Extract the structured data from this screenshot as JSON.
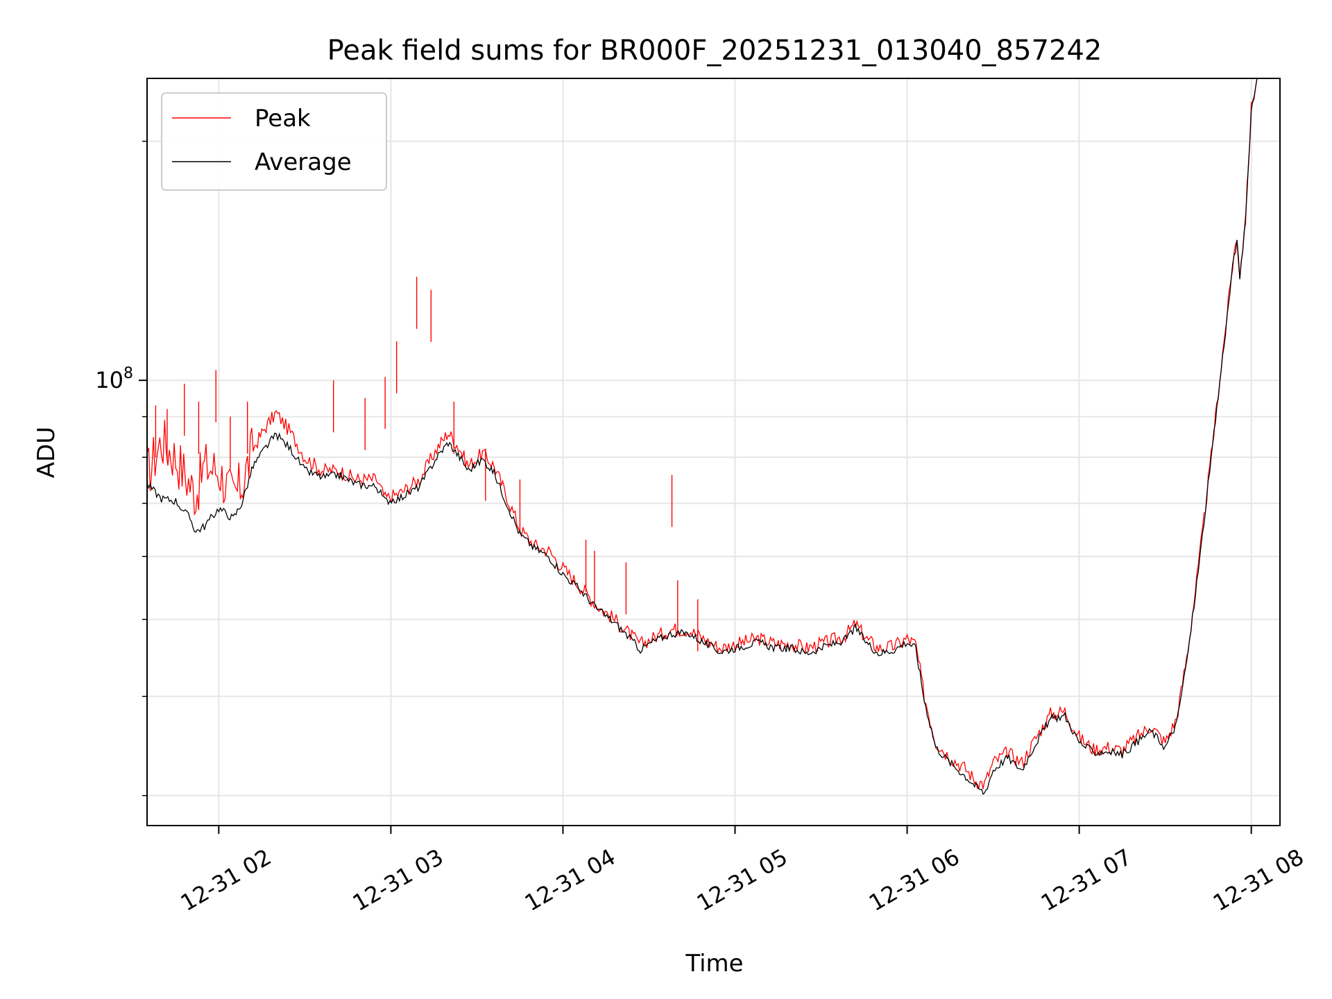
{
  "chart_data": {
    "type": "line",
    "title": "Peak field sums for BR000F_20251231_013040_857242",
    "xlabel": "Time",
    "ylabel": "ADU",
    "y_scale": "log",
    "ylim": [
      27500000,
      240000000
    ],
    "xlim": [
      "2025-12-31T01:35:00",
      "2025-12-31T08:10:00"
    ],
    "grid": true,
    "legend_placement": "top-left",
    "x_ticks": [
      {
        "t": "2025-12-31T02:00:00",
        "label": "12-31 02"
      },
      {
        "t": "2025-12-31T03:00:00",
        "label": "12-31 03"
      },
      {
        "t": "2025-12-31T04:00:00",
        "label": "12-31 04"
      },
      {
        "t": "2025-12-31T05:00:00",
        "label": "12-31 05"
      },
      {
        "t": "2025-12-31T06:00:00",
        "label": "12-31 06"
      },
      {
        "t": "2025-12-31T07:00:00",
        "label": "12-31 07"
      },
      {
        "t": "2025-12-31T08:00:00",
        "label": "12-31 08"
      }
    ],
    "y_major_ticks": [
      {
        "value": 100000000,
        "base": "10",
        "exp": "8"
      }
    ],
    "y_minor_ticks": [
      30000000,
      40000000,
      50000000,
      60000000,
      70000000,
      80000000,
      90000000,
      200000000
    ],
    "series": [
      {
        "name": "Peak",
        "color": "#ff0000",
        "points": [
          [
            "2025-12-31T01:35:00",
            76000000
          ],
          [
            "2025-12-31T01:40:00",
            84000000
          ],
          [
            "2025-12-31T01:45:00",
            80000000
          ],
          [
            "2025-12-31T01:50:00",
            74000000
          ],
          [
            "2025-12-31T01:52:00",
            72000000
          ],
          [
            "2025-12-31T01:55:00",
            78000000
          ],
          [
            "2025-12-31T02:00:00",
            77000000
          ],
          [
            "2025-12-31T02:05:00",
            71000000
          ],
          [
            "2025-12-31T02:08:00",
            74000000
          ],
          [
            "2025-12-31T02:12:00",
            82000000
          ],
          [
            "2025-12-31T02:16:00",
            87000000
          ],
          [
            "2025-12-31T02:20:00",
            91000000
          ],
          [
            "2025-12-31T02:25:00",
            86000000
          ],
          [
            "2025-12-31T02:30:00",
            80000000
          ],
          [
            "2025-12-31T02:36:00",
            77000000
          ],
          [
            "2025-12-31T02:42:00",
            77000000
          ],
          [
            "2025-12-31T02:48:00",
            75000000
          ],
          [
            "2025-12-31T02:55:00",
            75000000
          ],
          [
            "2025-12-31T02:58:00",
            71000000
          ],
          [
            "2025-12-31T03:03:00",
            72000000
          ],
          [
            "2025-12-31T03:10:00",
            75000000
          ],
          [
            "2025-12-31T03:16:00",
            82000000
          ],
          [
            "2025-12-31T03:20:00",
            86000000
          ],
          [
            "2025-12-31T03:24:00",
            82000000
          ],
          [
            "2025-12-31T03:27:00",
            78000000
          ],
          [
            "2025-12-31T03:32:00",
            81000000
          ],
          [
            "2025-12-31T03:36:00",
            78000000
          ],
          [
            "2025-12-31T03:40:00",
            72000000
          ],
          [
            "2025-12-31T03:45:00",
            65000000
          ],
          [
            "2025-12-31T03:50:00",
            62000000
          ],
          [
            "2025-12-31T03:55:00",
            61000000
          ],
          [
            "2025-12-31T04:00:00",
            58000000
          ],
          [
            "2025-12-31T04:06:00",
            55000000
          ],
          [
            "2025-12-31T04:12:00",
            52000000
          ],
          [
            "2025-12-31T04:18:00",
            50000000
          ],
          [
            "2025-12-31T04:23:00",
            48000000
          ],
          [
            "2025-12-31T04:27:00",
            46500000
          ],
          [
            "2025-12-31T04:32:00",
            47500000
          ],
          [
            "2025-12-31T04:38:00",
            48600000
          ],
          [
            "2025-12-31T04:44:00",
            48500000
          ],
          [
            "2025-12-31T04:50:00",
            47000000
          ],
          [
            "2025-12-31T04:55:00",
            46000000
          ],
          [
            "2025-12-31T05:00:00",
            46500000
          ],
          [
            "2025-12-31T05:08:00",
            47300000
          ],
          [
            "2025-12-31T05:14:00",
            46600000
          ],
          [
            "2025-12-31T05:20:00",
            46500000
          ],
          [
            "2025-12-31T05:25:00",
            46000000
          ],
          [
            "2025-12-31T05:32:00",
            46800000
          ],
          [
            "2025-12-31T05:38:00",
            47600000
          ],
          [
            "2025-12-31T05:42:00",
            49300000
          ],
          [
            "2025-12-31T05:46:00",
            47200000
          ],
          [
            "2025-12-31T05:50:00",
            46000000
          ],
          [
            "2025-12-31T05:55:00",
            46200000
          ],
          [
            "2025-12-31T06:00:00",
            47300000
          ],
          [
            "2025-12-31T06:03:00",
            46500000
          ],
          [
            "2025-12-31T06:06:00",
            40000000
          ],
          [
            "2025-12-31T06:10:00",
            35000000
          ],
          [
            "2025-12-31T06:15:00",
            33500000
          ],
          [
            "2025-12-31T06:20:00",
            32500000
          ],
          [
            "2025-12-31T06:24:00",
            31300000
          ],
          [
            "2025-12-31T06:27:00",
            31000000
          ],
          [
            "2025-12-31T06:30:00",
            33000000
          ],
          [
            "2025-12-31T06:35:00",
            34000000
          ],
          [
            "2025-12-31T06:40:00",
            33000000
          ],
          [
            "2025-12-31T06:45:00",
            35500000
          ],
          [
            "2025-12-31T06:50:00",
            38000000
          ],
          [
            "2025-12-31T06:55:00",
            38300000
          ],
          [
            "2025-12-31T07:00:00",
            35500000
          ],
          [
            "2025-12-31T07:05:00",
            34300000
          ],
          [
            "2025-12-31T07:10:00",
            34500000
          ],
          [
            "2025-12-31T07:15:00",
            34200000
          ],
          [
            "2025-12-31T07:20:00",
            35500000
          ],
          [
            "2025-12-31T07:25:00",
            36700000
          ],
          [
            "2025-12-31T07:30:00",
            35000000
          ],
          [
            "2025-12-31T07:34:00",
            37500000
          ],
          [
            "2025-12-31T07:38:00",
            46000000
          ],
          [
            "2025-12-31T07:42:00",
            60000000
          ],
          [
            "2025-12-31T07:46:00",
            80000000
          ],
          [
            "2025-12-31T07:50:00",
            108000000
          ],
          [
            "2025-12-31T07:54:00",
            145000000
          ],
          [
            "2025-12-31T07:55:00",
            150000000
          ],
          [
            "2025-12-31T07:56:00",
            136000000
          ],
          [
            "2025-12-31T07:58:00",
            160000000
          ],
          [
            "2025-12-31T08:00:00",
            220000000
          ],
          [
            "2025-12-31T08:02:00",
            240000000
          ]
        ],
        "spikes": [
          [
            "2025-12-31T01:35:00",
            100000000
          ],
          [
            "2025-12-31T01:38:00",
            93000000
          ],
          [
            "2025-12-31T01:42:00",
            92000000
          ],
          [
            "2025-12-31T01:48:00",
            99000000
          ],
          [
            "2025-12-31T01:53:00",
            94000000
          ],
          [
            "2025-12-31T01:59:00",
            103000000
          ],
          [
            "2025-12-31T02:04:00",
            90000000
          ],
          [
            "2025-12-31T02:10:00",
            94000000
          ],
          [
            "2025-12-31T02:40:00",
            100000000
          ],
          [
            "2025-12-31T02:51:00",
            95000000
          ],
          [
            "2025-12-31T02:58:00",
            101000000
          ],
          [
            "2025-12-31T03:02:00",
            112000000
          ],
          [
            "2025-12-31T03:09:00",
            135000000
          ],
          [
            "2025-12-31T03:14:00",
            130000000
          ],
          [
            "2025-12-31T03:22:00",
            94000000
          ],
          [
            "2025-12-31T03:33:00",
            82000000
          ],
          [
            "2025-12-31T03:45:00",
            75000000
          ],
          [
            "2025-12-31T04:08:00",
            63000000
          ],
          [
            "2025-12-31T04:11:00",
            61000000
          ],
          [
            "2025-12-31T04:22:00",
            59000000
          ],
          [
            "2025-12-31T04:38:00",
            76000000
          ],
          [
            "2025-12-31T04:40:00",
            56000000
          ],
          [
            "2025-12-31T04:47:00",
            53000000
          ]
        ]
      },
      {
        "name": "Average",
        "color": "#000000",
        "points": [
          [
            "2025-12-31T01:35:00",
            74000000
          ],
          [
            "2025-12-31T01:40:00",
            71000000
          ],
          [
            "2025-12-31T01:45:00",
            70500000
          ],
          [
            "2025-12-31T01:50:00",
            67000000
          ],
          [
            "2025-12-31T01:52:00",
            64500000
          ],
          [
            "2025-12-31T01:55:00",
            65500000
          ],
          [
            "2025-12-31T02:00:00",
            69000000
          ],
          [
            "2025-12-31T02:05:00",
            67000000
          ],
          [
            "2025-12-31T02:08:00",
            70000000
          ],
          [
            "2025-12-31T02:12:00",
            78000000
          ],
          [
            "2025-12-31T02:16:00",
            82000000
          ],
          [
            "2025-12-31T02:20:00",
            85500000
          ],
          [
            "2025-12-31T02:25:00",
            82000000
          ],
          [
            "2025-12-31T02:30:00",
            77000000
          ],
          [
            "2025-12-31T02:36:00",
            75500000
          ],
          [
            "2025-12-31T02:42:00",
            76000000
          ],
          [
            "2025-12-31T02:48:00",
            74000000
          ],
          [
            "2025-12-31T02:55:00",
            73500000
          ],
          [
            "2025-12-31T02:58:00",
            70500000
          ],
          [
            "2025-12-31T03:03:00",
            71000000
          ],
          [
            "2025-12-31T03:10:00",
            73500000
          ],
          [
            "2025-12-31T03:16:00",
            80000000
          ],
          [
            "2025-12-31T03:20:00",
            83500000
          ],
          [
            "2025-12-31T03:24:00",
            80000000
          ],
          [
            "2025-12-31T03:27:00",
            77000000
          ],
          [
            "2025-12-31T03:32:00",
            79500000
          ],
          [
            "2025-12-31T03:36:00",
            76500000
          ],
          [
            "2025-12-31T03:40:00",
            70500000
          ],
          [
            "2025-12-31T03:45:00",
            64000000
          ],
          [
            "2025-12-31T03:50:00",
            61500000
          ],
          [
            "2025-12-31T03:55:00",
            60000000
          ],
          [
            "2025-12-31T04:00:00",
            57000000
          ],
          [
            "2025-12-31T04:06:00",
            54500000
          ],
          [
            "2025-12-31T04:12:00",
            51500000
          ],
          [
            "2025-12-31T04:18:00",
            49500000
          ],
          [
            "2025-12-31T04:23:00",
            47500000
          ],
          [
            "2025-12-31T04:27:00",
            45800000
          ],
          [
            "2025-12-31T04:32:00",
            47000000
          ],
          [
            "2025-12-31T04:38:00",
            48000000
          ],
          [
            "2025-12-31T04:44:00",
            48000000
          ],
          [
            "2025-12-31T04:50:00",
            46500000
          ],
          [
            "2025-12-31T04:55:00",
            45500000
          ],
          [
            "2025-12-31T05:00:00",
            46000000
          ],
          [
            "2025-12-31T05:08:00",
            46800000
          ],
          [
            "2025-12-31T05:14:00",
            46000000
          ],
          [
            "2025-12-31T05:20:00",
            46000000
          ],
          [
            "2025-12-31T05:25:00",
            45300000
          ],
          [
            "2025-12-31T05:32:00",
            46300000
          ],
          [
            "2025-12-31T05:38:00",
            47000000
          ],
          [
            "2025-12-31T05:42:00",
            48800000
          ],
          [
            "2025-12-31T05:46:00",
            46700000
          ],
          [
            "2025-12-31T05:50:00",
            45300000
          ],
          [
            "2025-12-31T05:55:00",
            45700000
          ],
          [
            "2025-12-31T06:00:00",
            46800000
          ],
          [
            "2025-12-31T06:03:00",
            46000000
          ],
          [
            "2025-12-31T06:06:00",
            39500000
          ],
          [
            "2025-12-31T06:10:00",
            34500000
          ],
          [
            "2025-12-31T06:15:00",
            33000000
          ],
          [
            "2025-12-31T06:20:00",
            31800000
          ],
          [
            "2025-12-31T06:24:00",
            30800000
          ],
          [
            "2025-12-31T06:27:00",
            30200000
          ],
          [
            "2025-12-31T06:30:00",
            32300000
          ],
          [
            "2025-12-31T06:35:00",
            33500000
          ],
          [
            "2025-12-31T06:40:00",
            32300000
          ],
          [
            "2025-12-31T06:45:00",
            35000000
          ],
          [
            "2025-12-31T06:50:00",
            37500000
          ],
          [
            "2025-12-31T06:55:00",
            37800000
          ],
          [
            "2025-12-31T07:00:00",
            35000000
          ],
          [
            "2025-12-31T07:05:00",
            34000000
          ],
          [
            "2025-12-31T07:10:00",
            34100000
          ],
          [
            "2025-12-31T07:15:00",
            33800000
          ],
          [
            "2025-12-31T07:20:00",
            35000000
          ],
          [
            "2025-12-31T07:25:00",
            36200000
          ],
          [
            "2025-12-31T07:30:00",
            34500000
          ],
          [
            "2025-12-31T07:34:00",
            37000000
          ],
          [
            "2025-12-31T07:38:00",
            45500000
          ],
          [
            "2025-12-31T07:42:00",
            59500000
          ],
          [
            "2025-12-31T07:46:00",
            79500000
          ],
          [
            "2025-12-31T07:50:00",
            107000000
          ],
          [
            "2025-12-31T07:54:00",
            144000000
          ],
          [
            "2025-12-31T07:55:00",
            149000000
          ],
          [
            "2025-12-31T07:56:00",
            135000000
          ],
          [
            "2025-12-31T07:58:00",
            159000000
          ],
          [
            "2025-12-31T08:00:00",
            219000000
          ],
          [
            "2025-12-31T08:02:00",
            240000000
          ]
        ]
      }
    ]
  }
}
